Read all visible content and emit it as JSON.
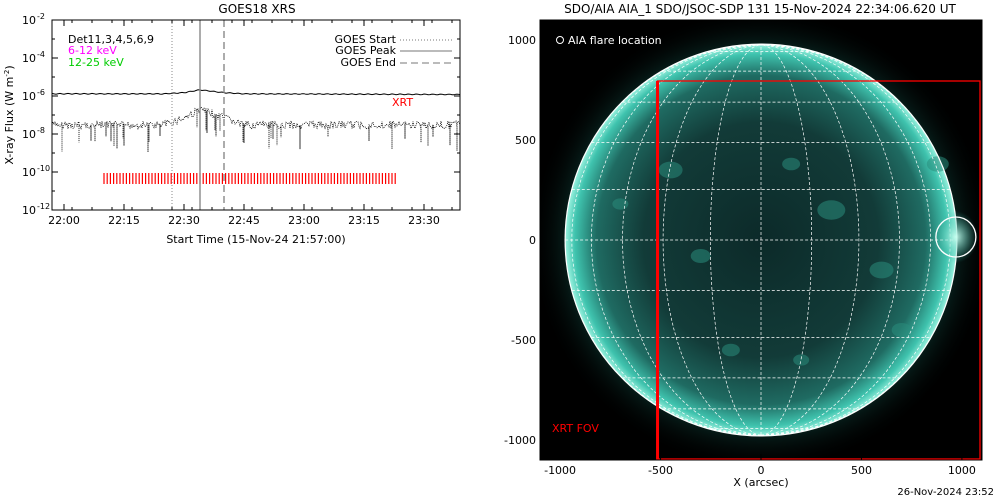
{
  "chart_data": [
    {
      "type": "line",
      "title": "GOES18 XRS",
      "xlabel": "Start Time (15-Nov-24 21:57:00)",
      "ylabel": "X-ray Flux (W m",
      "ylabel_sup": "-2",
      "ylabel_close": ")",
      "xlim": [
        "21:57",
        "23:39"
      ],
      "ylim": [
        1e-12,
        0.01
      ],
      "yscale": "log",
      "x_ticks": [
        "22:00",
        "22:15",
        "22:30",
        "22:45",
        "23:00",
        "23:15",
        "23:30"
      ],
      "y_ticks": [
        {
          "base": "10",
          "exp": "-2"
        },
        {
          "base": "10",
          "exp": "-4"
        },
        {
          "base": "10",
          "exp": "-6"
        },
        {
          "base": "10",
          "exp": "-8"
        },
        {
          "base": "10",
          "exp": "-10"
        },
        {
          "base": "10",
          "exp": "-12"
        }
      ],
      "legend_left": [
        {
          "label": "Det11,3,4,5,6,9",
          "color": "#000000"
        },
        {
          "label": "6-12 keV",
          "color": "#ff00ff"
        },
        {
          "label": "12-25 keV",
          "color": "#00cc00"
        }
      ],
      "legend_right": [
        {
          "label": "GOES Start",
          "style": "dotted",
          "time": "22:27"
        },
        {
          "label": "GOES Peak",
          "style": "solid",
          "time": "22:34"
        },
        {
          "label": "GOES End",
          "style": "dashed",
          "time": "22:40"
        }
      ],
      "series": [
        {
          "name": "",
          "style": "solid",
          "x": [
            "21:57",
            "22:25",
            "22:30",
            "22:34",
            "22:40",
            "22:45",
            "23:39"
          ],
          "y": [
            1.3e-06,
            1.3e-06,
            1.5e-06,
            2.1e-06,
            1.5e-06,
            1.3e-06,
            1.2e-06
          ]
        },
        {
          "name": "",
          "style": "dotted",
          "x": [
            "21:57",
            "22:25",
            "22:30",
            "22:34",
            "22:40",
            "22:45",
            "23:39"
          ],
          "y": [
            3e-08,
            3e-08,
            7e-08,
            2e-07,
            7e-08,
            3e-08,
            3e-08
          ]
        }
      ],
      "xrt_label": "XRT",
      "xrt_span": [
        "22:10",
        "23:23"
      ]
    },
    {
      "type": "heatmap",
      "title": "SDO/AIA AIA_1 SDO/JSOC-SDP 131 15-Nov-2024 22:34:06.620 UT",
      "xlabel": "X (arcsec)",
      "xlim": [
        -1100,
        1100
      ],
      "ylim": [
        -1100,
        1100
      ],
      "x_ticks": [
        "-1000",
        "-500",
        "0",
        "500",
        "1000"
      ],
      "y_ticks": [
        "1000",
        "500",
        "0",
        "-500",
        "-1000"
      ],
      "legend_text": "AIA flare location",
      "flare_location": [
        970,
        15
      ],
      "fov_label": "XRT FOV",
      "xrt_fov": {
        "x": [
          -515,
          1100
        ],
        "y": [
          -1100,
          795
        ]
      },
      "disk_color": "#2fb3a0",
      "fov_color": "#ff0000"
    }
  ],
  "footer": {
    "date": "26-Nov-2024 23:52"
  }
}
